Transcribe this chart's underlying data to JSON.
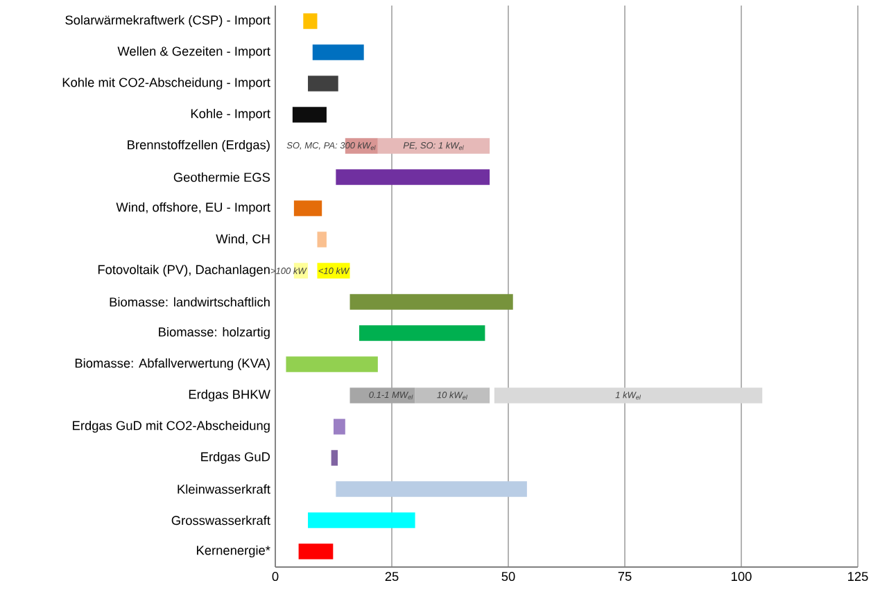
{
  "chart_data": {
    "type": "bar",
    "orientation": "horizontal",
    "categories": [
      "Solarwärmekraftwerk (CSP) - Import",
      "Wellen & Gezeiten - Import",
      "Kohle mit CO2-Abscheidung - Import",
      "Kohle - Import",
      "Brennstoffzellen (Erdgas)",
      "Geothermie EGS",
      "Wind, offshore, EU - Import",
      "Wind, CH",
      "Fotovoltaik (PV), Dachanlagen",
      "Biomasse: landwirtschaftlich",
      "Biomasse: holzartig",
      "Biomasse: Abfallverwertung (KVA)",
      "Erdgas BHKW",
      "Erdgas GuD mit CO2-Abscheidung",
      "Erdgas GuD",
      "Kleinwasserkraft",
      "Grosswasserkraft",
      "Kernenergie*"
    ],
    "series": [
      {
        "base": [
          6,
          8,
          7,
          3.7,
          15,
          13,
          4,
          9,
          4,
          16,
          18,
          2.3,
          16,
          12.5,
          12,
          13,
          7,
          5
        ],
        "values": [
          3,
          11,
          6.5,
          7.3,
          7,
          33,
          6,
          2,
          3,
          35,
          27,
          19.7,
          14,
          2.5,
          1.4,
          41,
          23,
          7.4
        ],
        "colors": [
          "#ffc000",
          "#0070c0",
          "#404040",
          "#0d0d0d",
          "#d99694",
          "#7030a0",
          "#e46c0a",
          "#fac090",
          "#ffff99",
          "#77933c",
          "#00b050",
          "#92d050",
          "#a6a6a6",
          "#9b7fc4",
          "#8064a2",
          "#b9cde5",
          "#00ffff",
          "#ff0000"
        ]
      },
      {
        "base": [
          null,
          null,
          null,
          null,
          22,
          null,
          null,
          null,
          9,
          null,
          null,
          null,
          30,
          null,
          null,
          null,
          null,
          null
        ],
        "values": [
          null,
          null,
          null,
          null,
          24,
          null,
          null,
          null,
          7,
          null,
          null,
          null,
          16,
          null,
          null,
          null,
          null,
          null
        ],
        "colors": [
          null,
          null,
          null,
          null,
          "#e6b9b8",
          null,
          null,
          null,
          "#ffff00",
          null,
          null,
          null,
          "#bfbfbf",
          null,
          null,
          null,
          null,
          null
        ]
      },
      {
        "base": [
          null,
          null,
          null,
          null,
          null,
          null,
          null,
          null,
          null,
          null,
          null,
          null,
          47,
          null,
          null,
          null,
          null,
          null
        ],
        "values": [
          null,
          null,
          null,
          null,
          null,
          null,
          null,
          null,
          null,
          null,
          null,
          null,
          57.5,
          null,
          null,
          null,
          null,
          null
        ],
        "colors": [
          null,
          null,
          null,
          null,
          null,
          null,
          null,
          null,
          null,
          null,
          null,
          null,
          "#d9d9d9",
          null,
          null,
          null,
          null,
          null
        ]
      }
    ],
    "annotations": [
      "SO, MC, PA: 300 kW$_{el}$",
      "PE, SO: 1 kW$_{el}$",
      ">100 kW",
      "<10 kW",
      "0.1-1 MW$_{el}$",
      "10 kW$_{el}$",
      "1 kW$_{el}$"
    ],
    "xlim": [
      0,
      125
    ],
    "xticks": [
      0,
      25,
      50,
      75,
      100,
      125
    ],
    "grid": "x"
  }
}
